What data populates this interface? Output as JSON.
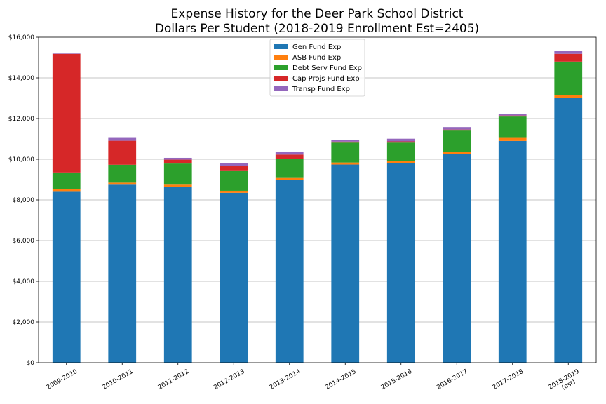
{
  "chart_data": {
    "type": "bar",
    "stacked": true,
    "title": "Expense History for the Deer Park School District",
    "subtitle": "Dollars Per Student (2018-2019 Enrollment Est=2405)",
    "xlabel": "",
    "ylabel": "",
    "ylim": [
      0,
      16000
    ],
    "yticks": [
      "$0",
      "$2,000",
      "$4,000",
      "$6,000",
      "$8,000",
      "$10,000",
      "$12,000",
      "$14,000",
      "$16,000"
    ],
    "ytick_values": [
      0,
      2000,
      4000,
      6000,
      8000,
      10000,
      12000,
      14000,
      16000
    ],
    "grid": "horizontal",
    "legend_position": "top-center",
    "categories": [
      "2009-2010",
      "2010-2011",
      "2011-2012",
      "2012-2013",
      "2013-2014",
      "2014-2015",
      "2015-2016",
      "2016-2017",
      "2017-2018",
      "2018-2019\n(est)"
    ],
    "series": [
      {
        "name": "Gen Fund Exp",
        "color": "#1f77b4",
        "values": [
          8400,
          8750,
          8650,
          8350,
          8980,
          9740,
          9800,
          10250,
          10900,
          13000
        ]
      },
      {
        "name": "ASB Fund Exp",
        "color": "#ff7f0e",
        "values": [
          120,
          100,
          100,
          100,
          100,
          100,
          120,
          110,
          150,
          150
        ]
      },
      {
        "name": "Debt Serv Fund Exp",
        "color": "#2ca02c",
        "values": [
          830,
          880,
          1040,
          970,
          950,
          980,
          900,
          1050,
          1050,
          1650
        ]
      },
      {
        "name": "Cap Projs Fund Exp",
        "color": "#d62728",
        "values": [
          5830,
          1180,
          190,
          260,
          200,
          50,
          60,
          50,
          50,
          380
        ]
      },
      {
        "name": "Transp Fund Exp",
        "color": "#9467bd",
        "values": [
          20,
          140,
          90,
          140,
          150,
          70,
          130,
          120,
          60,
          130
        ]
      }
    ]
  }
}
